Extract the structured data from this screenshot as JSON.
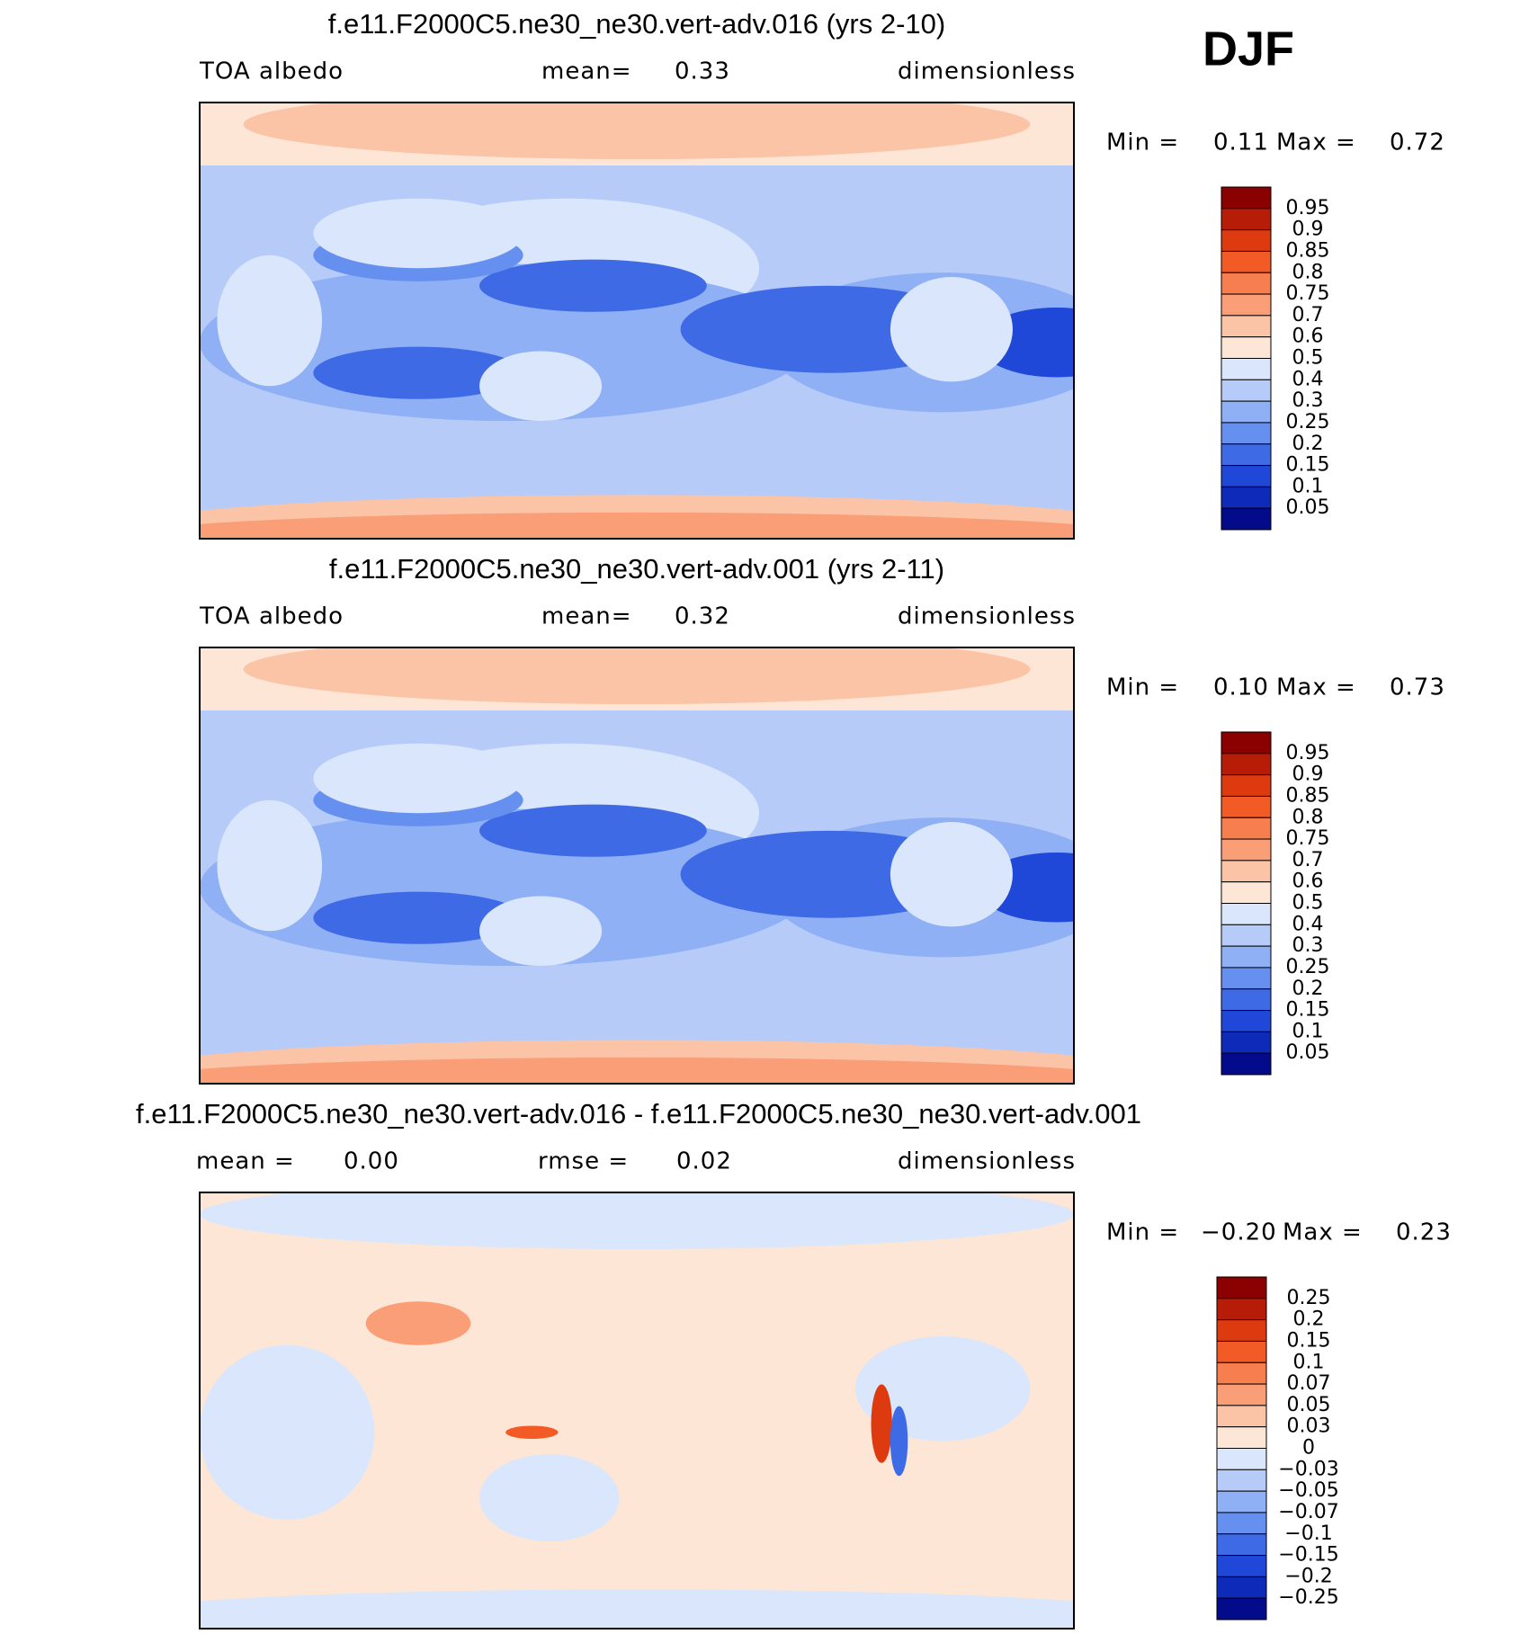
{
  "season": "DJF",
  "panels": [
    {
      "title": "f.e11.F2000C5.ne30_ne30.vert-adv.016 (yrs 2-10)",
      "left": "TOA albedo",
      "center_label": "mean=",
      "center_value": "0.33",
      "right_label": "",
      "right_value": "",
      "units": "dimensionless",
      "min_label": "Min =",
      "min": "0.11",
      "max_label": "Max =",
      "max": "0.72",
      "levels": [
        "0.95",
        "0.9",
        "0.85",
        "0.8",
        "0.75",
        "0.7",
        "0.6",
        "0.5",
        "0.4",
        "0.3",
        "0.25",
        "0.2",
        "0.15",
        "0.1",
        "0.05"
      ]
    },
    {
      "title": "f.e11.F2000C5.ne30_ne30.vert-adv.001 (yrs 2-11)",
      "left": "TOA albedo",
      "center_label": "mean=",
      "center_value": "0.32",
      "right_label": "",
      "right_value": "",
      "units": "dimensionless",
      "min_label": "Min =",
      "min": "0.10",
      "max_label": "Max =",
      "max": "0.73",
      "levels": [
        "0.95",
        "0.9",
        "0.85",
        "0.8",
        "0.75",
        "0.7",
        "0.6",
        "0.5",
        "0.4",
        "0.3",
        "0.25",
        "0.2",
        "0.15",
        "0.1",
        "0.05"
      ]
    },
    {
      "title": "f.e11.F2000C5.ne30_ne30.vert-adv.016 - f.e11.F2000C5.ne30_ne30.vert-adv.001",
      "left": "mean =",
      "left_value": "0.00",
      "center_label": "rmse =",
      "center_value": "0.02",
      "units": "dimensionless",
      "min_label": "Min =",
      "min": "−0.20",
      "max_label": "Max =",
      "max": "0.23",
      "levels": [
        "0.25",
        "0.2",
        "0.15",
        "0.1",
        "0.07",
        "0.05",
        "0.03",
        "0",
        "−0.03",
        "−0.05",
        "−0.07",
        "−0.1",
        "−0.15",
        "−0.2",
        "−0.25"
      ]
    }
  ],
  "colors": [
    "#8b0000",
    "#b71c08",
    "#de3a10",
    "#f25a26",
    "#f77e4e",
    "#fa9e78",
    "#fcc4a6",
    "#fde6d6",
    "#d9e6fb",
    "#b6cbf8",
    "#8fb0f4",
    "#6690ef",
    "#3f6ae6",
    "#1f47d8",
    "#0d2ab8",
    "#030b8a"
  ]
}
